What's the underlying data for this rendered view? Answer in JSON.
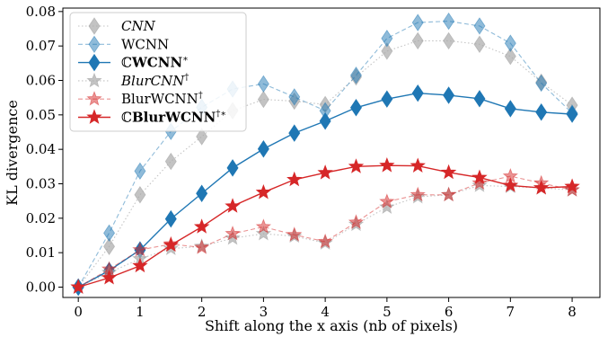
{
  "chart_data": {
    "type": "line",
    "xlabel": "Shift along the x axis (nb of pixels)",
    "ylabel": "KL divergence",
    "xlim": [
      -0.25,
      8.45
    ],
    "ylim": [
      -0.003,
      0.081
    ],
    "xticks": [
      0,
      1,
      2,
      3,
      4,
      5,
      6,
      7,
      8
    ],
    "yticks": [
      0.0,
      0.01,
      0.02,
      0.03,
      0.04,
      0.05,
      0.06,
      0.07,
      0.08
    ],
    "ytick_labels": [
      "0.00",
      "0.01",
      "0.02",
      "0.03",
      "0.04",
      "0.05",
      "0.06",
      "0.07",
      "0.08"
    ],
    "legend_position": "top-left",
    "x": [
      0,
      0.5,
      1,
      1.5,
      2,
      2.5,
      3,
      3.5,
      4,
      4.5,
      5,
      5.5,
      6,
      6.5,
      7,
      7.5,
      8
    ],
    "series": [
      {
        "name": "CNN",
        "color": "#aaaaaa",
        "line_style": "dotted",
        "marker": "diamond",
        "alpha": 0.7,
        "values": [
          0.0,
          0.0118,
          0.0268,
          0.0365,
          0.0437,
          0.0512,
          0.0545,
          0.054,
          0.053,
          0.061,
          0.0685,
          0.0715,
          0.0715,
          0.0705,
          0.067,
          0.0595,
          0.0528
        ]
      },
      {
        "name": "WCNN",
        "color": "#1f77b4",
        "line_style": "dashed",
        "marker": "diamond",
        "alpha": 0.5,
        "values": [
          0.0,
          0.0157,
          0.0337,
          0.0452,
          0.0522,
          0.0575,
          0.059,
          0.0552,
          0.0512,
          0.0615,
          0.0722,
          0.0768,
          0.0772,
          0.0758,
          0.0708,
          0.0592,
          0.0505
        ]
      },
      {
        "name": "ℂWCNN*",
        "color": "#1f77b4",
        "line_style": "solid",
        "marker": "diamond",
        "alpha": 1.0,
        "values": [
          0.0,
          0.0048,
          0.0108,
          0.0198,
          0.0272,
          0.0346,
          0.0401,
          0.0447,
          0.0482,
          0.0521,
          0.0546,
          0.0563,
          0.0557,
          0.0547,
          0.0518,
          0.0508,
          0.0502
        ]
      },
      {
        "name": "BlurCNN†",
        "color": "#aaaaaa",
        "line_style": "dotted",
        "marker": "star",
        "alpha": 0.7,
        "values": [
          0.0,
          0.0042,
          0.0082,
          0.0112,
          0.0118,
          0.0142,
          0.0155,
          0.0148,
          0.0128,
          0.0182,
          0.0232,
          0.0262,
          0.0268,
          0.0295,
          0.0292,
          0.0288,
          0.0282
        ]
      },
      {
        "name": "BlurWCNN†",
        "color": "#d62728",
        "line_style": "dashed",
        "marker": "star",
        "alpha": 0.5,
        "values": [
          0.0,
          0.0052,
          0.0108,
          0.0125,
          0.0115,
          0.0155,
          0.0175,
          0.0152,
          0.0132,
          0.0188,
          0.0248,
          0.0268,
          0.0268,
          0.0302,
          0.0322,
          0.0302,
          0.0282
        ]
      },
      {
        "name": "ℂBlurWCNN†*",
        "color": "#d62728",
        "line_style": "solid",
        "marker": "star",
        "alpha": 1.0,
        "values": [
          0.0,
          0.0027,
          0.0062,
          0.0122,
          0.0175,
          0.0235,
          0.0275,
          0.0312,
          0.0332,
          0.035,
          0.0353,
          0.0352,
          0.0333,
          0.0318,
          0.0295,
          0.0288,
          0.0292
        ]
      }
    ]
  },
  "legend": {
    "items": [
      {
        "main": "CNN",
        "sup": "",
        "italic": true,
        "bold": false,
        "c_prefix": false
      },
      {
        "main": "WCNN",
        "sup": "",
        "italic": false,
        "bold": false,
        "c_prefix": false
      },
      {
        "main": "WCNN",
        "sup": "∗",
        "italic": false,
        "bold": true,
        "c_prefix": true
      },
      {
        "main": "BlurCNN",
        "sup": "†",
        "italic": true,
        "bold": false,
        "c_prefix": false
      },
      {
        "main": "BlurWCNN",
        "sup": "†",
        "italic": false,
        "bold": false,
        "c_prefix": false
      },
      {
        "main": "BlurWCNN",
        "sup": "†∗",
        "italic": false,
        "bold": true,
        "c_prefix": true
      }
    ],
    "c_symbol": "ℂ"
  }
}
